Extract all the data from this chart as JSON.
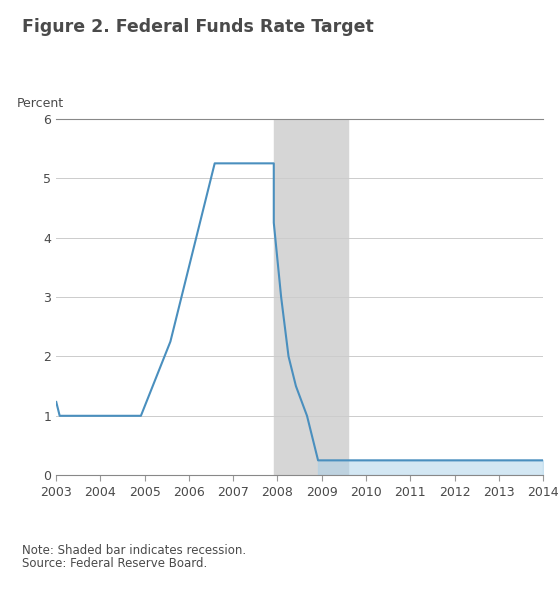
{
  "title": "Figure 2. Federal Funds Rate Target",
  "ylabel": "Percent",
  "xlim": [
    2003,
    2014
  ],
  "ylim": [
    0,
    6
  ],
  "yticks": [
    0,
    1,
    2,
    3,
    4,
    5,
    6
  ],
  "xticks": [
    2003,
    2004,
    2005,
    2006,
    2007,
    2008,
    2009,
    2010,
    2011,
    2012,
    2013,
    2014
  ],
  "recession_start": 2007.917,
  "recession_end": 2009.583,
  "recession_color": "#d6d6d6",
  "line_color": "#4a8fbe",
  "line_width": 1.5,
  "fill_color": "#a8d0e8",
  "fill_alpha": 0.5,
  "note_line1": "Note: Shaded bar indicates recession.",
  "note_line2": "Source: Federal Reserve Board.",
  "text_color": "#4a4a4a",
  "background_color": "#ffffff",
  "x": [
    2003.0,
    2003.083,
    2003.583,
    2004.917,
    2005.583,
    2006.583,
    2007.917,
    2007.917,
    2008.083,
    2008.25,
    2008.417,
    2008.667,
    2008.917,
    2009.583,
    2014.0
  ],
  "y": [
    1.25,
    1.0,
    1.0,
    1.0,
    2.25,
    5.25,
    5.25,
    4.25,
    3.0,
    2.0,
    1.5,
    1.0,
    0.25,
    0.25,
    0.25
  ]
}
